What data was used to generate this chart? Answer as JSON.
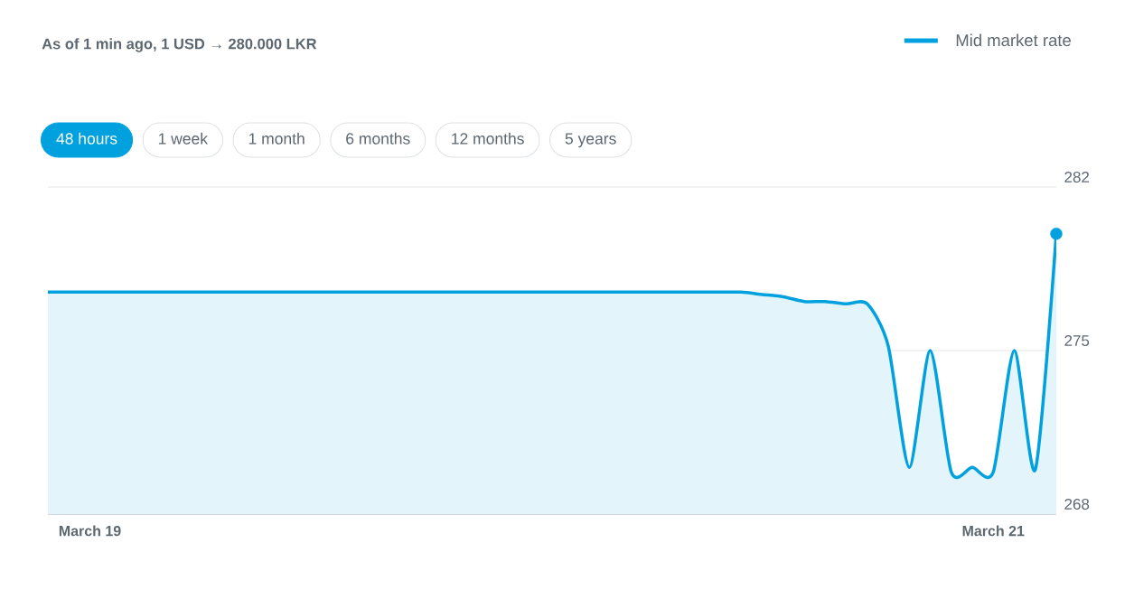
{
  "chart_data": {
    "type": "area",
    "title": "As of 1 min ago, 1 USD → 280.000 LKR",
    "annotations": [
      "48 hours",
      "1 week",
      "1 month",
      "6 months",
      "12 months",
      "5 years"
    ],
    "categories": [
      null,
      null,
      "March 19",
      null,
      null,
      null,
      null,
      null,
      null,
      null,
      null,
      null,
      null,
      null,
      null,
      null,
      null,
      null,
      null,
      null,
      null,
      null,
      null,
      null,
      null,
      null,
      null,
      null,
      null,
      null,
      null,
      null,
      null,
      null,
      null,
      null,
      null,
      null,
      null,
      null,
      null,
      null,
      null,
      null,
      null,
      "March 21",
      null,
      null,
      null
    ],
    "series": [
      {
        "name": "Mid market rate",
        "color": "#00a1de",
        "values": [
          277.5,
          277.5,
          277.5,
          277.5,
          277.5,
          277.5,
          277.5,
          277.5,
          277.5,
          277.5,
          277.5,
          277.5,
          277.5,
          277.5,
          277.5,
          277.5,
          277.5,
          277.5,
          277.5,
          277.5,
          277.5,
          277.5,
          277.5,
          277.5,
          277.5,
          277.5,
          277.5,
          277.5,
          277.5,
          277.5,
          277.5,
          277.5,
          277.5,
          277.5,
          277.4,
          277.3,
          277.1,
          277.1,
          277.0,
          277.0,
          275.2,
          270.0,
          275.0,
          269.8,
          270.0,
          269.8,
          275.0,
          269.9,
          280.0
        ]
      },
      {
        "type": "scatter",
        "color": "#00a1de",
        "marker": "circle",
        "values": [
          null,
          null,
          null,
          null,
          null,
          null,
          null,
          null,
          null,
          null,
          null,
          null,
          null,
          null,
          null,
          null,
          null,
          null,
          null,
          null,
          null,
          null,
          null,
          null,
          null,
          null,
          null,
          null,
          null,
          null,
          null,
          null,
          null,
          null,
          null,
          null,
          null,
          null,
          null,
          null,
          null,
          null,
          null,
          null,
          null,
          null,
          null,
          null,
          280.0
        ]
      }
    ],
    "ylim": [
      268,
      282
    ],
    "yticks": [
      268,
      275,
      282
    ],
    "grid": "y",
    "legend": "top right"
  }
}
